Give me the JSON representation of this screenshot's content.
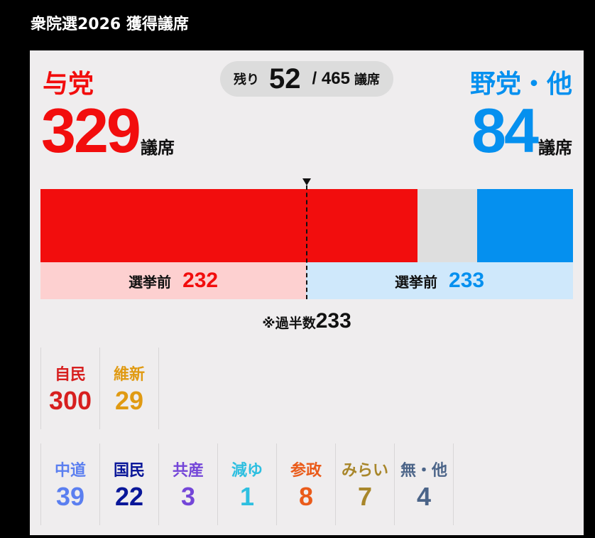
{
  "title": "衆院選2026 獲得議席",
  "ruling": {
    "label": "与党",
    "seats": "329",
    "unit": "議席",
    "before_label": "選挙前",
    "before_seats": "232",
    "color": "#f20d0d",
    "bg_color": "#fdd0d0"
  },
  "opposition": {
    "label": "野党・他",
    "seats": "84",
    "unit": "議席",
    "before_label": "選挙前",
    "before_seats": "233",
    "color": "#0590ef",
    "bg_color": "#cfe8fb"
  },
  "remaining": {
    "label": "残り",
    "seats": "52",
    "total": "/ 465",
    "unit": "議席"
  },
  "majority": {
    "label": "※過半数",
    "value": "233"
  },
  "chart_data": {
    "type": "bar",
    "title": "衆院選2026 獲得議席",
    "orientation": "horizontal-stacked",
    "total": 465,
    "majority_line": 233,
    "segments": [
      {
        "name": "与党",
        "value": 329,
        "color": "#f20d0d"
      },
      {
        "name": "残り",
        "value": 52,
        "color": "#dedede"
      },
      {
        "name": "野党・他",
        "value": 84,
        "color": "#0590ef"
      }
    ],
    "before_election": {
      "与党": 232,
      "野党・他": 233
    }
  },
  "parties_ruling": [
    {
      "name": "自民",
      "seats": "300",
      "color": "#d71f1f"
    },
    {
      "name": "維新",
      "seats": "29",
      "color": "#e09a12"
    }
  ],
  "parties_opposition": [
    {
      "name": "中道",
      "seats": "39",
      "color": "#5b7ff0"
    },
    {
      "name": "国民",
      "seats": "22",
      "color": "#0a1799"
    },
    {
      "name": "共産",
      "seats": "3",
      "color": "#7446d8"
    },
    {
      "name": "減ゆ",
      "seats": "1",
      "color": "#2ebfe0"
    },
    {
      "name": "参政",
      "seats": "8",
      "color": "#ea5b1a"
    },
    {
      "name": "みらい",
      "seats": "7",
      "color": "#a8862a"
    },
    {
      "name": "無・他",
      "seats": "4",
      "color": "#4b6488"
    }
  ]
}
